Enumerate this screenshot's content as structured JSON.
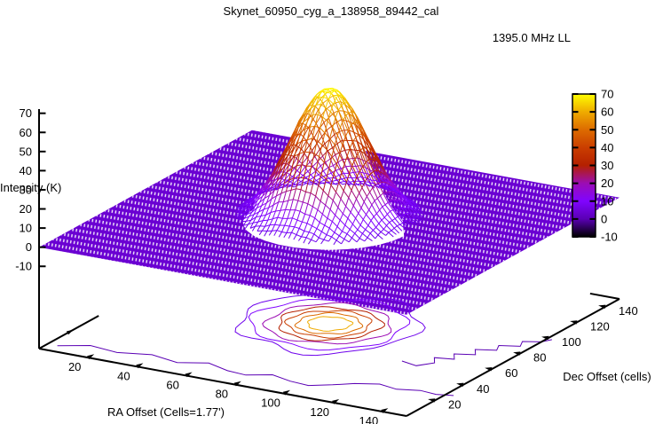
{
  "title": "Skynet_60950_cyg_a_138958_89442_cal",
  "legend": {
    "label": "1395.0 MHz LL"
  },
  "axes": {
    "x": {
      "label": "RA Offset (Cells=1.77')",
      "ticks": [
        20,
        40,
        60,
        80,
        100,
        120,
        140
      ],
      "range": [
        0,
        150
      ]
    },
    "y": {
      "label": "Dec Offset (cells)",
      "ticks": [
        20,
        40,
        60,
        80,
        100,
        120,
        140
      ],
      "range": [
        0,
        150
      ]
    },
    "z": {
      "label": "Intensity (K)",
      "ticks": [
        70,
        60,
        50,
        40,
        30,
        20,
        10,
        0,
        -10
      ],
      "range": [
        -10,
        70
      ]
    }
  },
  "colorbar": {
    "ticks": [
      70,
      60,
      50,
      40,
      30,
      20,
      10,
      0,
      -10
    ],
    "range": [
      -10,
      70
    ]
  },
  "chart_data": {
    "type": "surface3d_with_base_contours",
    "frequency_label": "1395.0 MHz LL",
    "surface": {
      "function": "gaussian_peak",
      "amplitude_K": 70,
      "center_cells": [
        75,
        75
      ],
      "sigma_cells": 14,
      "background_K": 0,
      "xrange": [
        0,
        150
      ],
      "yrange": [
        0,
        150
      ],
      "zrange": [
        -10,
        70
      ],
      "grid_step_cells": 2
    },
    "contour_levels_K": [
      5,
      10,
      20,
      30,
      40,
      50,
      60
    ],
    "noise_contour_level_K": 0,
    "noise_contours": [
      [
        [
          4,
          6
        ],
        [
          14,
          12
        ],
        [
          26,
          10
        ],
        [
          38,
          14
        ],
        [
          50,
          11
        ],
        [
          60,
          16
        ],
        [
          70,
          12
        ],
        [
          78,
          11
        ],
        [
          86,
          16
        ],
        [
          95,
          13
        ],
        [
          103,
          12
        ],
        [
          110,
          17
        ],
        [
          116,
          22
        ],
        [
          124,
          26
        ],
        [
          132,
          24
        ],
        [
          140,
          27
        ],
        [
          147,
          26
        ],
        [
          153,
          28
        ]
      ],
      [
        [
          118,
          52
        ],
        [
          125,
          50
        ],
        [
          129,
          56
        ],
        [
          126,
          61
        ],
        [
          133,
          63
        ],
        [
          130,
          68
        ],
        [
          137,
          71
        ],
        [
          134,
          76
        ],
        [
          141,
          79
        ],
        [
          139,
          84
        ],
        [
          146,
          87
        ],
        [
          144,
          92
        ],
        [
          150,
          95
        ],
        [
          152,
          99
        ]
      ]
    ],
    "palette": {
      "name": "gnuplot default (rgbformulae 7,5,15: black-violet-red-yellow)",
      "stops": [
        {
          "z": -10,
          "color": "#000000"
        },
        {
          "z": 0,
          "color": "#5a00b4"
        },
        {
          "z": 10,
          "color": "#8004ff"
        },
        {
          "z": 20,
          "color": "#9c0db4"
        },
        {
          "z": 30,
          "color": "#b42000"
        },
        {
          "z": 40,
          "color": "#ca3e00"
        },
        {
          "z": 50,
          "color": "#dd6b00"
        },
        {
          "z": 60,
          "color": "#efab00"
        },
        {
          "z": 70,
          "color": "#ffff00"
        }
      ]
    },
    "flat_surface_color": "#6a00d2",
    "noise_contour_color": "#5a00b4",
    "axis_color": "#000000"
  }
}
